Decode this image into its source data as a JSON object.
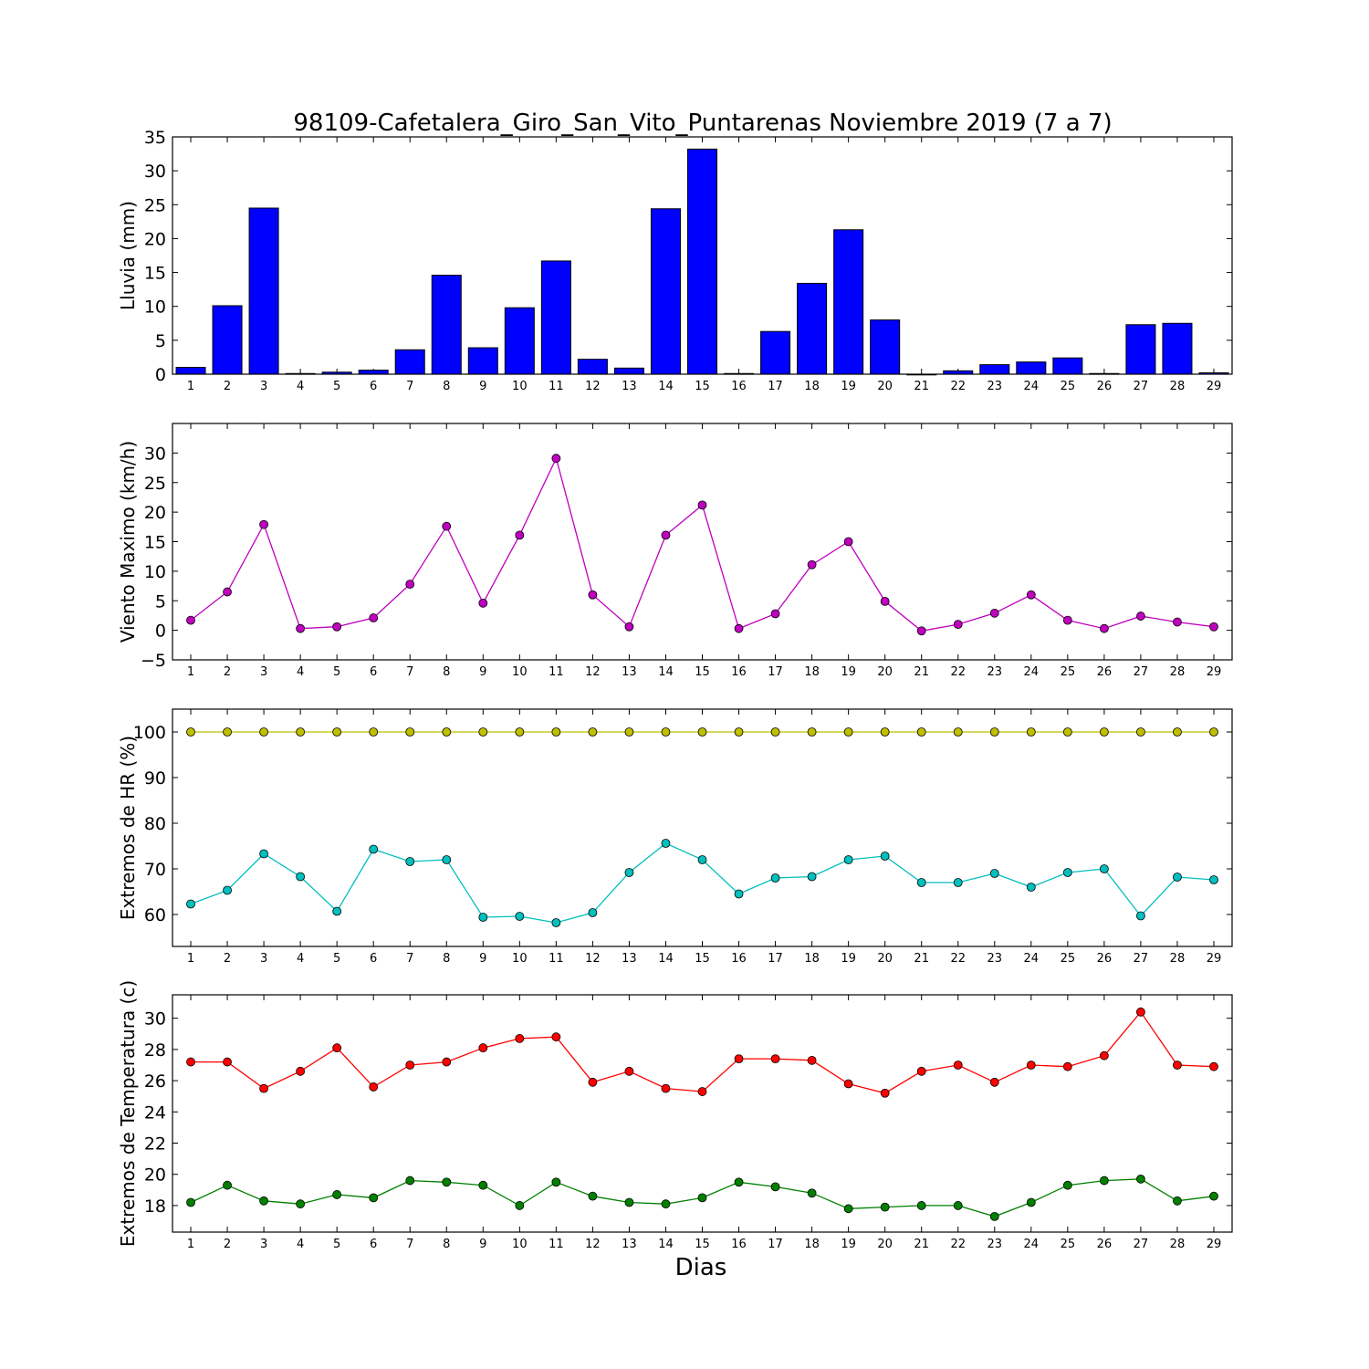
{
  "figure": {
    "title": "98109-Cafetalera_Giro_San_Vito_Puntarenas Noviembre 2019  (7 a 7)",
    "xlabel": "Dias"
  },
  "chart_data": [
    {
      "type": "bar",
      "ylabel": "Lluvia (mm)",
      "ylim": [
        0,
        35
      ],
      "yticks": [
        0,
        5,
        10,
        15,
        20,
        25,
        30,
        35
      ],
      "xlim": [
        0.5,
        29.5
      ],
      "categories": [
        1,
        2,
        3,
        4,
        5,
        6,
        7,
        8,
        9,
        10,
        11,
        12,
        13,
        14,
        15,
        16,
        17,
        18,
        19,
        20,
        21,
        22,
        23,
        24,
        25,
        26,
        27,
        28,
        29
      ],
      "grid": false,
      "series": [
        {
          "color": "#0000ff",
          "values": [
            1.0,
            10.1,
            24.5,
            0.1,
            0.3,
            0.6,
            3.6,
            14.6,
            3.9,
            9.8,
            16.7,
            2.2,
            0.9,
            24.4,
            33.2,
            0.1,
            6.3,
            13.4,
            21.3,
            8.0,
            0.0,
            0.5,
            1.4,
            1.8,
            2.4,
            0.1,
            7.3,
            7.5,
            0.2
          ]
        }
      ]
    },
    {
      "type": "line",
      "ylabel": "Viento Maximo (km/h)",
      "ylim": [
        -5,
        35
      ],
      "yticks": [
        -5,
        0,
        5,
        10,
        15,
        20,
        25,
        30
      ],
      "ytick_labels": [
        "−5",
        "0",
        "5",
        "10",
        "15",
        "20",
        "25",
        "30"
      ],
      "xlim": [
        0.5,
        29.5
      ],
      "x": [
        1,
        2,
        3,
        4,
        5,
        6,
        7,
        8,
        9,
        10,
        11,
        12,
        13,
        14,
        15,
        16,
        17,
        18,
        19,
        20,
        21,
        22,
        23,
        24,
        25,
        26,
        27,
        28,
        29
      ],
      "grid": false,
      "series": [
        {
          "color": "#bf00bf",
          "values": [
            1.7,
            6.5,
            17.9,
            0.3,
            0.6,
            2.1,
            7.8,
            17.6,
            4.6,
            16.1,
            29.1,
            6.0,
            0.6,
            16.1,
            21.2,
            0.3,
            2.8,
            11.1,
            15.0,
            4.9,
            -0.1,
            1.0,
            2.9,
            6.0,
            1.7,
            0.3,
            2.4,
            1.4,
            0.6
          ]
        }
      ]
    },
    {
      "type": "line",
      "ylabel": "Extremos de HR (%)",
      "ylim": [
        53,
        105
      ],
      "yticks": [
        60,
        70,
        80,
        90,
        100
      ],
      "xlim": [
        0.5,
        29.5
      ],
      "x": [
        1,
        2,
        3,
        4,
        5,
        6,
        7,
        8,
        9,
        10,
        11,
        12,
        13,
        14,
        15,
        16,
        17,
        18,
        19,
        20,
        21,
        22,
        23,
        24,
        25,
        26,
        27,
        28,
        29
      ],
      "grid": false,
      "series": [
        {
          "color": "#bfbf00",
          "values": [
            100,
            100,
            100,
            100,
            100,
            100,
            100,
            100,
            100,
            100,
            100,
            100,
            100,
            100,
            100,
            100,
            100,
            100,
            100,
            100,
            100,
            100,
            100,
            100,
            100,
            100,
            100,
            100,
            100
          ]
        },
        {
          "color": "#00bfbf",
          "values": [
            62.3,
            65.3,
            73.3,
            68.3,
            60.7,
            74.3,
            71.6,
            72.0,
            59.4,
            59.6,
            58.2,
            60.4,
            69.2,
            75.6,
            72.0,
            64.5,
            68.0,
            68.3,
            72.0,
            72.8,
            67.0,
            67.0,
            69.0,
            66.0,
            69.2,
            70.0,
            59.7,
            68.2,
            67.6
          ]
        }
      ]
    },
    {
      "type": "line",
      "ylabel": "Extremos de Temperatura (c)",
      "ylim": [
        16.3,
        31.5
      ],
      "yticks": [
        18,
        20,
        22,
        24,
        26,
        28,
        30
      ],
      "xlim": [
        0.5,
        29.5
      ],
      "x": [
        1,
        2,
        3,
        4,
        5,
        6,
        7,
        8,
        9,
        10,
        11,
        12,
        13,
        14,
        15,
        16,
        17,
        18,
        19,
        20,
        21,
        22,
        23,
        24,
        25,
        26,
        27,
        28,
        29
      ],
      "grid": false,
      "series": [
        {
          "color": "#ff0000",
          "values": [
            27.2,
            27.2,
            25.5,
            26.6,
            28.1,
            25.6,
            27.0,
            27.2,
            28.1,
            28.7,
            28.8,
            25.9,
            26.6,
            25.5,
            25.3,
            27.4,
            27.4,
            27.3,
            25.8,
            25.2,
            26.6,
            27.0,
            25.9,
            27.0,
            26.9,
            27.6,
            30.4,
            27.0,
            26.9
          ]
        },
        {
          "color": "#008000",
          "values": [
            18.2,
            19.3,
            18.3,
            18.1,
            18.7,
            18.5,
            19.6,
            19.5,
            19.3,
            18.0,
            19.5,
            18.6,
            18.2,
            18.1,
            18.5,
            19.5,
            19.2,
            18.8,
            17.8,
            17.9,
            18.0,
            18.0,
            17.3,
            18.2,
            19.3,
            19.6,
            19.7,
            18.3,
            18.6
          ]
        }
      ]
    }
  ]
}
